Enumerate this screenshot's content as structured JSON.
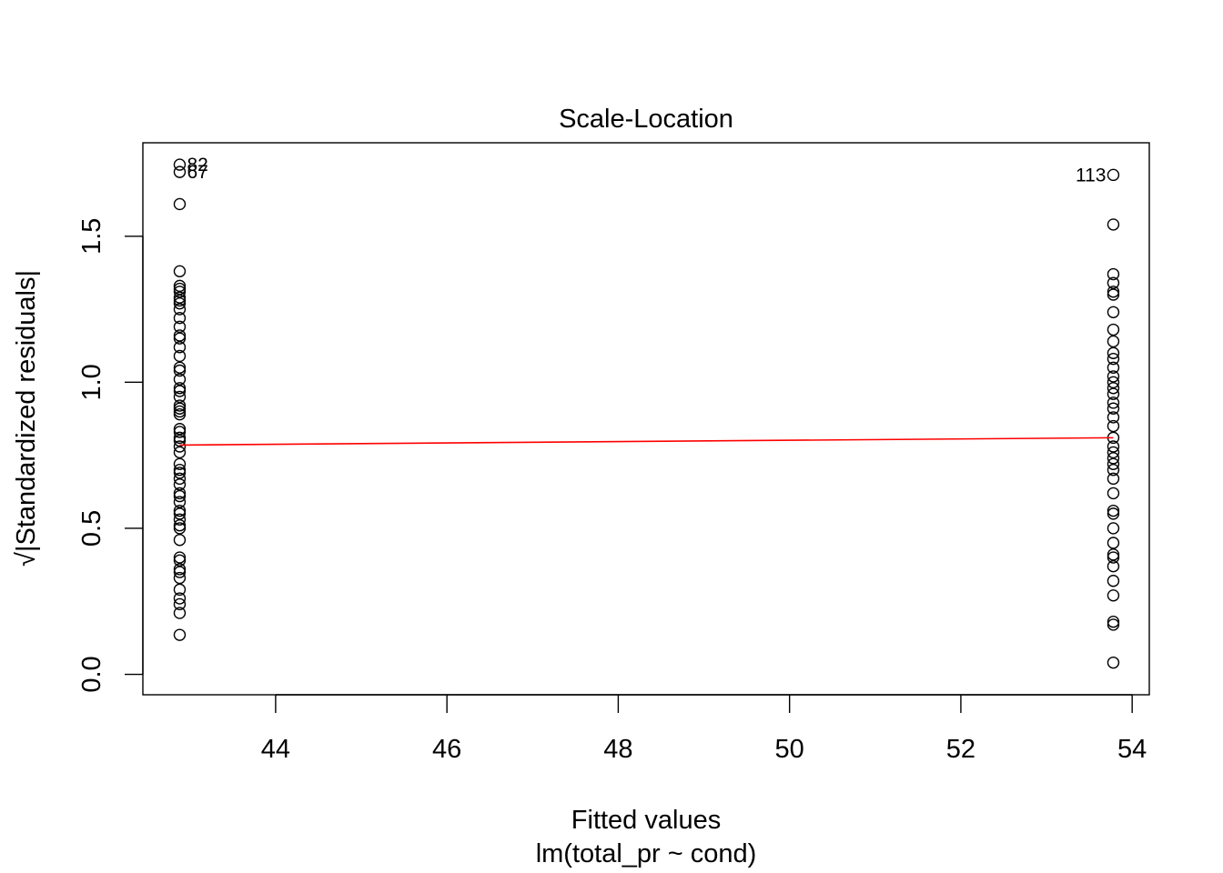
{
  "chart_data": {
    "type": "scatter",
    "title": "Scale-Location",
    "xlabel": "Fitted values",
    "xlabel_sub": "lm(total_pr ~ cond)",
    "ylabel_prefix": "√",
    "ylabel": "|Standardized residuals|",
    "xlim": [
      42.45,
      54.2
    ],
    "ylim": [
      -0.07,
      1.82
    ],
    "x_ticks": [
      44,
      46,
      48,
      50,
      52,
      54
    ],
    "x_tick_labels": [
      "44",
      "46",
      "48",
      "50",
      "52",
      "54"
    ],
    "y_ticks": [
      0.0,
      0.5,
      1.0,
      1.5
    ],
    "y_tick_labels": [
      "0.0",
      "0.5",
      "1.0",
      "1.5"
    ],
    "grid": false,
    "colors": {
      "points": "#000000",
      "smoother": "#ff0000"
    },
    "series": [
      {
        "x": 42.88,
        "y": [
          1.745,
          1.72,
          1.61,
          1.38,
          1.33,
          1.32,
          1.31,
          1.29,
          1.28,
          1.27,
          1.25,
          1.22,
          1.19,
          1.16,
          1.15,
          1.12,
          1.09,
          1.05,
          1.04,
          1.01,
          0.98,
          0.97,
          0.95,
          0.92,
          0.91,
          0.9,
          0.89,
          0.84,
          0.83,
          0.81,
          0.8,
          0.78,
          0.76,
          0.72,
          0.7,
          0.69,
          0.67,
          0.65,
          0.62,
          0.61,
          0.59,
          0.56,
          0.55,
          0.53,
          0.51,
          0.5,
          0.46,
          0.4,
          0.39,
          0.36,
          0.35,
          0.33,
          0.29,
          0.26,
          0.24,
          0.21,
          0.135
        ]
      },
      {
        "x": 53.78,
        "y": [
          1.71,
          1.54,
          1.37,
          1.34,
          1.31,
          1.3,
          1.24,
          1.18,
          1.14,
          1.1,
          1.08,
          1.05,
          1.02,
          1.0,
          0.98,
          0.96,
          0.93,
          0.91,
          0.88,
          0.85,
          0.81,
          0.78,
          0.76,
          0.74,
          0.72,
          0.7,
          0.67,
          0.62,
          0.56,
          0.55,
          0.5,
          0.45,
          0.41,
          0.4,
          0.37,
          0.32,
          0.27,
          0.18,
          0.17,
          0.04
        ]
      }
    ],
    "smoother": {
      "x": [
        42.88,
        53.78
      ],
      "y": [
        0.785,
        0.81
      ]
    },
    "point_labels": [
      {
        "text": "82",
        "x": 42.88,
        "y": 1.745,
        "side": "right"
      },
      {
        "text": "67",
        "x": 42.88,
        "y": 1.72,
        "side": "right"
      },
      {
        "text": "113",
        "x": 53.78,
        "y": 1.71,
        "side": "left"
      }
    ]
  }
}
